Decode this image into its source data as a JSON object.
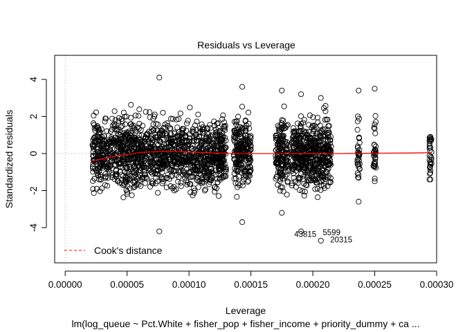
{
  "chart_data": {
    "type": "scatter",
    "title": "Residuals vs Leverage",
    "xlabel": "Leverage",
    "ylabel": "Standardized residuals",
    "subtitle": "lm(log_queue ~ Pct.White + fisher_pop + fisher_income + priority_dummy + ca ...",
    "xlim": [
      -8.5e-06,
      0.0003
    ],
    "ylim": [
      -5.9,
      5.3
    ],
    "x_ticks": [
      {
        "value": 0.0,
        "label": "0.00000"
      },
      {
        "value": 5e-05,
        "label": "0.00005"
      },
      {
        "value": 0.0001,
        "label": "0.00010"
      },
      {
        "value": 0.00015,
        "label": "0.00015"
      },
      {
        "value": 0.0002,
        "label": "0.00020"
      },
      {
        "value": 0.00025,
        "label": "0.00025"
      },
      {
        "value": 0.0003,
        "label": "0.00030"
      }
    ],
    "y_ticks": [
      {
        "value": -4,
        "label": "-4"
      },
      {
        "value": -2,
        "label": "-2"
      },
      {
        "value": 0,
        "label": "0"
      },
      {
        "value": 2,
        "label": "2"
      },
      {
        "value": 4,
        "label": "4"
      }
    ],
    "reference_lines": {
      "h": 0,
      "v": 0,
      "style": "dotted grey"
    },
    "smoother": {
      "color": "#ff0000",
      "x": [
        2.2e-05,
        4e-05,
        6e-05,
        8e-05,
        0.0001,
        0.00012,
        0.00014,
        0.00016,
        0.00018,
        0.0002,
        0.00022,
        0.00024,
        0.00026,
        0.00028,
        0.000295
      ],
      "y": [
        -0.4,
        -0.15,
        0.05,
        0.13,
        0.08,
        0.03,
        0.0,
        0.0,
        0.0,
        0.0,
        0.0,
        0.01,
        0.02,
        0.03,
        0.05
      ]
    },
    "legend": {
      "position": "bottom-left",
      "entries": [
        {
          "label": "Cook's distance",
          "color": "#ff0000",
          "style": "dashed"
        }
      ]
    },
    "annotations": [
      {
        "label": "43815",
        "x": 0.000185,
        "y": -4.5
      },
      {
        "label": "5599",
        "x": 0.000208,
        "y": -4.4
      },
      {
        "label": "20315",
        "x": 0.000214,
        "y": -4.8
      }
    ],
    "point_clusters": [
      {
        "x_range": [
          2.2e-05,
          0.00013
        ],
        "y_range": [
          -4.2,
          4.1
        ]
      },
      {
        "x_range": [
          0.000136,
          0.00015
        ],
        "y_range": [
          -3.7,
          3.6
        ]
      },
      {
        "x_range": [
          0.00017,
          0.00018
        ],
        "y_range": [
          -3.2,
          3.4
        ]
      },
      {
        "x_range": [
          0.000183,
          0.000198
        ],
        "y_range": [
          -4.2,
          3.2
        ]
      },
      {
        "x_range": [
          0.000198,
          0.000215
        ],
        "y_range": [
          -4.7,
          3.0
        ]
      },
      {
        "x_range": [
          0.000236,
          0.000238
        ],
        "y_range": [
          -2.6,
          3.4
        ]
      },
      {
        "x_range": [
          0.000249,
          0.000251
        ],
        "y_range": [
          -1.5,
          3.5
        ]
      },
      {
        "x_range": [
          0.000294,
          0.000296
        ],
        "y_range": [
          -1.4,
          0.9
        ]
      }
    ]
  }
}
